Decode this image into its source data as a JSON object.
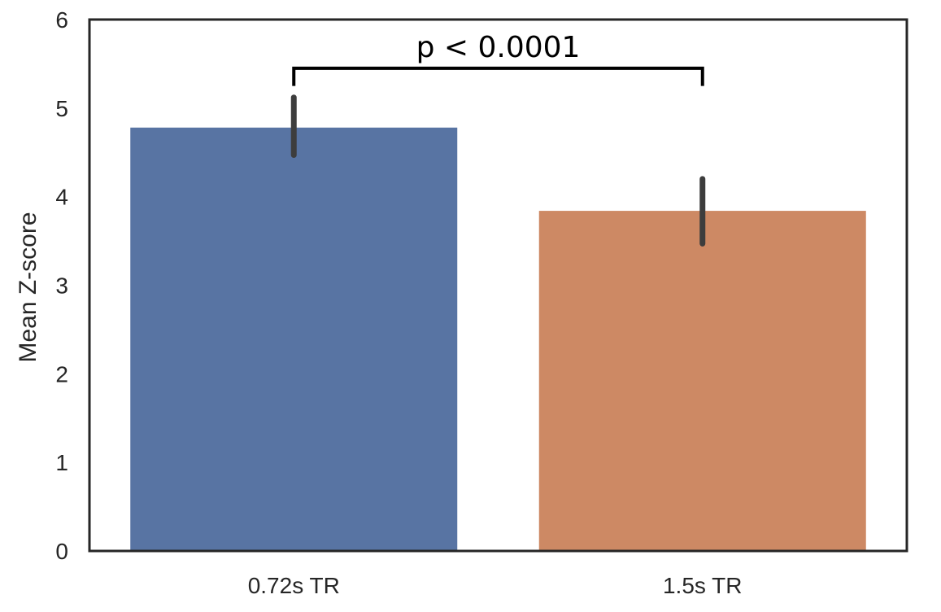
{
  "chart_data": {
    "type": "bar",
    "categories": [
      "0.72s TR",
      "1.5s TR"
    ],
    "values": [
      4.78,
      3.84
    ],
    "error_bars": [
      [
        4.47,
        5.12
      ],
      [
        3.47,
        4.2
      ]
    ],
    "colors": [
      "#5874a3",
      "#cd8964"
    ],
    "xlabel": "",
    "ylabel": "Mean Z-score",
    "ylim": [
      0,
      6
    ],
    "yticks": [
      "0",
      "1",
      "2",
      "3",
      "4",
      "5",
      "6"
    ],
    "grid": false,
    "annotation": {
      "text": "p < 0.0001",
      "from": "0.72s TR",
      "to": "1.5s TR",
      "y": 5.45,
      "drop": 0.2
    }
  }
}
